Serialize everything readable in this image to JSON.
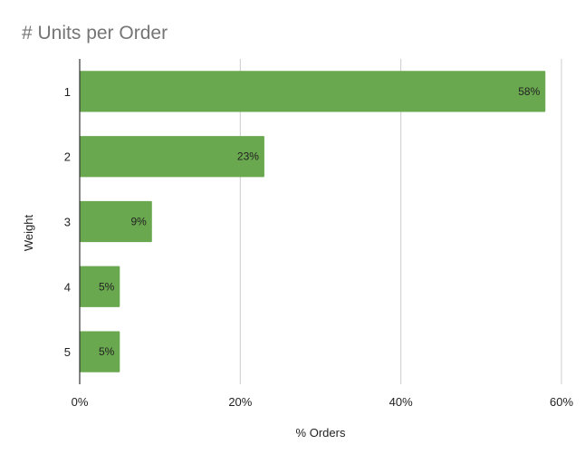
{
  "chart_data": {
    "type": "bar",
    "orientation": "horizontal",
    "title": "# Units per Order",
    "xlabel": "% Orders",
    "ylabel": "Weight",
    "categories": [
      "1",
      "2",
      "3",
      "4",
      "5"
    ],
    "values": [
      58,
      23,
      9,
      5,
      5
    ],
    "data_labels": [
      "58%",
      "23%",
      "9%",
      "5%",
      "5%"
    ],
    "xlim": [
      0,
      60
    ],
    "x_ticks": [
      0,
      20,
      40,
      60
    ],
    "x_tick_labels": [
      "0%",
      "20%",
      "40%",
      "60%"
    ],
    "grid": true,
    "legend": "none",
    "colors": {
      "bar": "#6aa84f",
      "grid": "#cccccc",
      "axis": "#333333",
      "title": "#757575"
    }
  }
}
